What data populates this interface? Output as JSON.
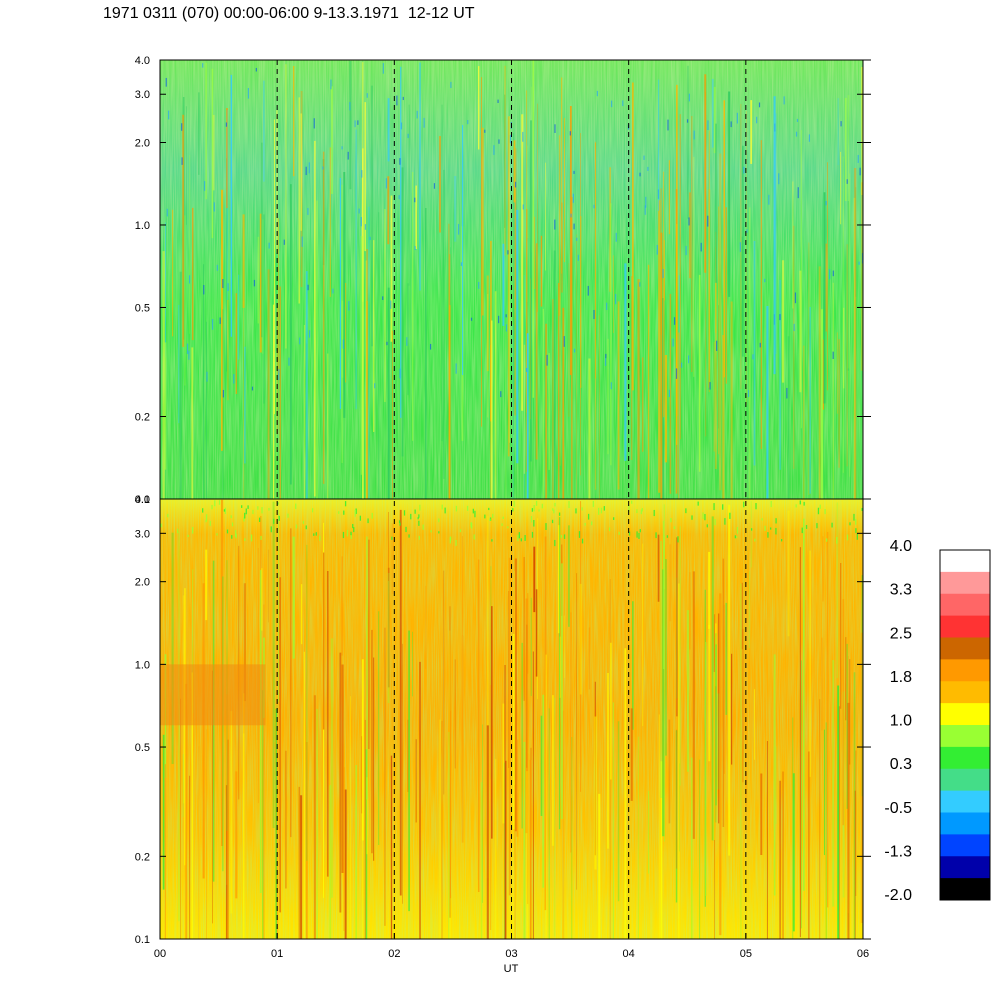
{
  "header": {
    "title": "1971 0311 (070) 00:00-06:00 9-13.3.1971  12-12 UT"
  },
  "chart_data": {
    "type": "heatmap",
    "title": "1971 0311 (070) 00:00-06:00 9-13.3.1971  12-12 UT",
    "xlabel": "UT",
    "x_ticks": [
      "00",
      "01",
      "02",
      "03",
      "04",
      "05",
      "06"
    ],
    "xlim": [
      0,
      6
    ],
    "dashed_hour_lines": [
      1,
      2,
      3,
      4,
      5
    ],
    "panels": [
      {
        "name": "upper",
        "ylim": [
          0.1,
          4.0
        ],
        "y_scale": "log",
        "y_ticks": [
          0.1,
          0.2,
          0.5,
          1.0,
          2.0,
          3.0,
          4.0
        ],
        "y_tick_labels": [
          "0.1",
          "0.2",
          "0.5",
          "1.0",
          "2.0",
          "3.0",
          "4.0"
        ],
        "dominant_levels": [
          0.3,
          0.8,
          1.0
        ],
        "notes": "mostly green/cyan with scattered yellow/orange streaks, strongest between 03 and 05 UT above 1.0"
      },
      {
        "name": "lower",
        "ylim": [
          0.1,
          4.0
        ],
        "y_scale": "log",
        "y_ticks": [
          0.1,
          0.2,
          0.5,
          1.0,
          2.0,
          3.0,
          4.0
        ],
        "y_tick_labels": [
          "0.1",
          "0.2",
          "0.5",
          "1.0",
          "2.0",
          "3.0",
          "4.0"
        ],
        "dominant_levels": [
          1.0,
          1.5,
          1.8
        ],
        "notes": "mostly yellow/orange with green streaks; orange patches near 0.6–1.0 at 00–01 UT"
      }
    ],
    "colorbar": {
      "tick_labels": [
        "4.0",
        "3.3",
        "2.5",
        "1.8",
        "1.0",
        "0.3",
        "-0.5",
        "-1.3",
        "-2.0"
      ],
      "colors_top_to_bottom": [
        "#ffffff",
        "#ff9999",
        "#ff6666",
        "#ff3333",
        "#cc6600",
        "#ff9900",
        "#ffbb00",
        "#ffff00",
        "#99ff33",
        "#33ee33",
        "#44dd88",
        "#33ccff",
        "#0099ff",
        "#0044ff",
        "#0000aa",
        "#000000"
      ]
    }
  }
}
